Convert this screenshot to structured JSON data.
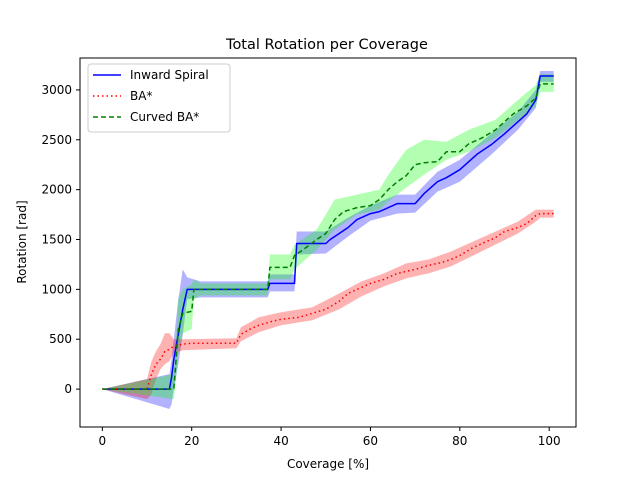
{
  "chart_data": {
    "type": "line",
    "title": "Total Rotation per Coverage",
    "xlabel": "Coverage [%]",
    "ylabel": "Rotation [rad]",
    "xlim": [
      -5,
      106
    ],
    "ylim": [
      -380,
      3320
    ],
    "xticks": [
      0,
      20,
      40,
      60,
      80,
      100
    ],
    "yticks": [
      0,
      500,
      1000,
      1500,
      2000,
      2500,
      3000
    ],
    "grid": false,
    "legend_position": "top-left",
    "series": [
      {
        "name": "Inward Spiral",
        "color": "#0000ff",
        "band_color": "#0000ff",
        "style": "solid",
        "points": [
          [
            0,
            0
          ],
          [
            15,
            0
          ],
          [
            15.5,
            120
          ],
          [
            16,
            300
          ],
          [
            17,
            550
          ],
          [
            18,
            800
          ],
          [
            19,
            1000
          ],
          [
            22,
            1000
          ],
          [
            30,
            1000
          ],
          [
            37,
            1000
          ],
          [
            37.5,
            1060
          ],
          [
            43,
            1060
          ],
          [
            43.5,
            1460
          ],
          [
            50,
            1460
          ],
          [
            51,
            1500
          ],
          [
            53,
            1560
          ],
          [
            55,
            1620
          ],
          [
            57,
            1700
          ],
          [
            60,
            1760
          ],
          [
            62,
            1780
          ],
          [
            66,
            1860
          ],
          [
            70,
            1860
          ],
          [
            72,
            1960
          ],
          [
            75,
            2080
          ],
          [
            77,
            2120
          ],
          [
            80,
            2200
          ],
          [
            84,
            2360
          ],
          [
            87,
            2450
          ],
          [
            90,
            2560
          ],
          [
            93,
            2680
          ],
          [
            95,
            2760
          ],
          [
            97,
            2900
          ],
          [
            98,
            3140
          ],
          [
            101,
            3140
          ]
        ],
        "band": [
          [
            0,
            0,
            0
          ],
          [
            15,
            -200,
            150
          ],
          [
            15.5,
            -150,
            300
          ],
          [
            16,
            0,
            500
          ],
          [
            17,
            250,
            900
          ],
          [
            18,
            550,
            1200
          ],
          [
            19,
            900,
            1120
          ],
          [
            22,
            920,
            1080
          ],
          [
            37,
            920,
            1080
          ],
          [
            37.5,
            980,
            1150
          ],
          [
            43,
            980,
            1150
          ],
          [
            43.5,
            1350,
            1580
          ],
          [
            50,
            1360,
            1580
          ],
          [
            55,
            1530,
            1720
          ],
          [
            60,
            1690,
            1840
          ],
          [
            66,
            1760,
            1950
          ],
          [
            70,
            1770,
            1950
          ],
          [
            75,
            1980,
            2180
          ],
          [
            80,
            2080,
            2300
          ],
          [
            87,
            2350,
            2560
          ],
          [
            93,
            2600,
            2780
          ],
          [
            97,
            2820,
            3000
          ],
          [
            98,
            3080,
            3190
          ],
          [
            101,
            3080,
            3190
          ]
        ]
      },
      {
        "name": "BA*",
        "color": "#ff0000",
        "band_color": "#ff0000",
        "style": "dotted",
        "points": [
          [
            0,
            0
          ],
          [
            10,
            0
          ],
          [
            11,
            150
          ],
          [
            12,
            250
          ],
          [
            13,
            300
          ],
          [
            14,
            380
          ],
          [
            15,
            400
          ],
          [
            16,
            430
          ],
          [
            18,
            450
          ],
          [
            20,
            460
          ],
          [
            25,
            460
          ],
          [
            30,
            460
          ],
          [
            31,
            550
          ],
          [
            33,
            600
          ],
          [
            35,
            640
          ],
          [
            38,
            680
          ],
          [
            40,
            700
          ],
          [
            44,
            720
          ],
          [
            47,
            760
          ],
          [
            50,
            800
          ],
          [
            53,
            880
          ],
          [
            55,
            960
          ],
          [
            58,
            1020
          ],
          [
            60,
            1060
          ],
          [
            63,
            1100
          ],
          [
            66,
            1160
          ],
          [
            68,
            1180
          ],
          [
            70,
            1200
          ],
          [
            73,
            1240
          ],
          [
            76,
            1270
          ],
          [
            78,
            1300
          ],
          [
            80,
            1340
          ],
          [
            83,
            1420
          ],
          [
            85,
            1460
          ],
          [
            88,
            1520
          ],
          [
            90,
            1580
          ],
          [
            93,
            1620
          ],
          [
            95,
            1660
          ],
          [
            97,
            1740
          ],
          [
            98,
            1760
          ],
          [
            101,
            1760
          ]
        ],
        "band": [
          [
            0,
            0,
            0
          ],
          [
            10,
            -100,
            100
          ],
          [
            11,
            -50,
            280
          ],
          [
            12,
            100,
            380
          ],
          [
            13,
            200,
            450
          ],
          [
            14,
            250,
            560
          ],
          [
            15,
            280,
            560
          ],
          [
            16,
            360,
            500
          ],
          [
            18,
            390,
            500
          ],
          [
            30,
            410,
            510
          ],
          [
            31,
            480,
            620
          ],
          [
            35,
            570,
            720
          ],
          [
            40,
            640,
            770
          ],
          [
            47,
            690,
            820
          ],
          [
            53,
            800,
            960
          ],
          [
            58,
            930,
            1080
          ],
          [
            63,
            1030,
            1160
          ],
          [
            68,
            1110,
            1260
          ],
          [
            73,
            1160,
            1300
          ],
          [
            78,
            1230,
            1380
          ],
          [
            83,
            1340,
            1480
          ],
          [
            88,
            1450,
            1580
          ],
          [
            93,
            1560,
            1680
          ],
          [
            97,
            1680,
            1800
          ],
          [
            98,
            1720,
            1800
          ],
          [
            101,
            1720,
            1800
          ]
        ]
      },
      {
        "name": "Curved BA*",
        "color": "#008000",
        "band_color": "#00ff00",
        "style": "dashed",
        "points": [
          [
            0,
            0
          ],
          [
            16,
            0
          ],
          [
            16.5,
            300
          ],
          [
            17,
            600
          ],
          [
            18,
            760
          ],
          [
            20,
            780
          ],
          [
            20.5,
            1000
          ],
          [
            22,
            1000
          ],
          [
            30,
            1000
          ],
          [
            37,
            1000
          ],
          [
            37.5,
            1220
          ],
          [
            42,
            1220
          ],
          [
            43,
            1340
          ],
          [
            45,
            1400
          ],
          [
            48,
            1500
          ],
          [
            50,
            1560
          ],
          [
            52,
            1700
          ],
          [
            54,
            1780
          ],
          [
            57,
            1820
          ],
          [
            60,
            1840
          ],
          [
            62,
            1900
          ],
          [
            64,
            2000
          ],
          [
            66,
            2080
          ],
          [
            68,
            2140
          ],
          [
            70,
            2250
          ],
          [
            72,
            2270
          ],
          [
            75,
            2280
          ],
          [
            77,
            2380
          ],
          [
            80,
            2380
          ],
          [
            82,
            2460
          ],
          [
            85,
            2520
          ],
          [
            88,
            2600
          ],
          [
            90,
            2680
          ],
          [
            92,
            2760
          ],
          [
            95,
            2840
          ],
          [
            97,
            2920
          ],
          [
            98,
            3060
          ],
          [
            101,
            3060
          ]
        ],
        "band": [
          [
            0,
            0,
            0
          ],
          [
            16,
            -100,
            150
          ],
          [
            16.5,
            100,
            500
          ],
          [
            17,
            400,
            900
          ],
          [
            18,
            560,
            1000
          ],
          [
            20,
            600,
            1050
          ],
          [
            20.5,
            900,
            1100
          ],
          [
            22,
            940,
            1060
          ],
          [
            37,
            940,
            1060
          ],
          [
            37.5,
            1100,
            1350
          ],
          [
            42,
            1100,
            1350
          ],
          [
            43,
            1200,
            1450
          ],
          [
            48,
            1400,
            1600
          ],
          [
            52,
            1600,
            1900
          ],
          [
            57,
            1750,
            1950
          ],
          [
            62,
            1800,
            2000
          ],
          [
            64,
            1880,
            2150
          ],
          [
            68,
            2020,
            2400
          ],
          [
            72,
            2150,
            2500
          ],
          [
            77,
            2300,
            2480
          ],
          [
            82,
            2380,
            2600
          ],
          [
            88,
            2520,
            2700
          ],
          [
            92,
            2660,
            2860
          ],
          [
            97,
            2840,
            3050
          ],
          [
            98,
            2980,
            3160
          ],
          [
            101,
            2980,
            3160
          ]
        ]
      }
    ]
  }
}
